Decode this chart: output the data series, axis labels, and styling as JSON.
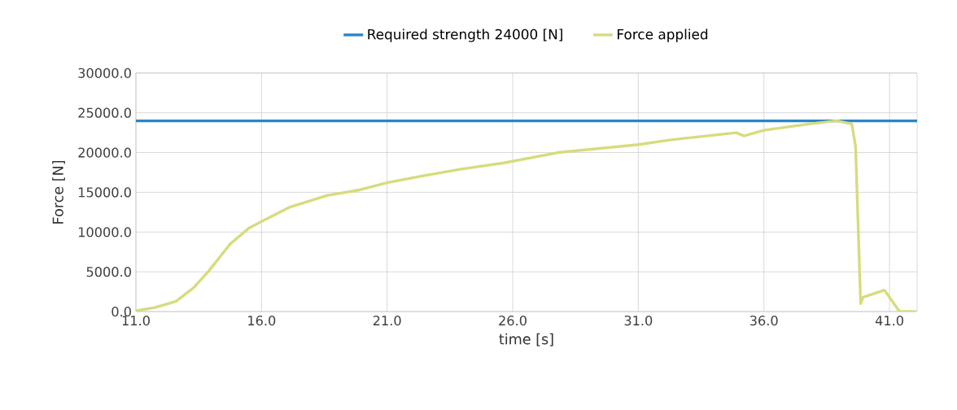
{
  "chart_data": {
    "type": "line",
    "xlabel": "time [s]",
    "ylabel": "Force [N]",
    "xlim": [
      11,
      42.1
    ],
    "ylim": [
      0,
      30000
    ],
    "xticks": [
      {
        "value": 11,
        "label": "11.0"
      },
      {
        "value": 16,
        "label": "16.0"
      },
      {
        "value": 21,
        "label": "21.0"
      },
      {
        "value": 26,
        "label": "26.0"
      },
      {
        "value": 31,
        "label": "31.0"
      },
      {
        "value": 36,
        "label": "36.0"
      },
      {
        "value": 41,
        "label": "41.0"
      }
    ],
    "yticks": [
      {
        "value": 0,
        "label": "0.0"
      },
      {
        "value": 5000,
        "label": "5000.0"
      },
      {
        "value": 10000,
        "label": "10000.0"
      },
      {
        "value": 15000,
        "label": "15000.0"
      },
      {
        "value": 20000,
        "label": "20000.0"
      },
      {
        "value": 25000,
        "label": "25000.0"
      },
      {
        "value": 30000,
        "label": "30000.0"
      }
    ],
    "grid": true,
    "legend": "top",
    "marker": "none",
    "line_style": "solid",
    "series": [
      {
        "name": "Required strength 24000 [N]",
        "color": "#2a86c9",
        "x": [
          11,
          42.1
        ],
        "values": [
          24000,
          24000
        ]
      },
      {
        "name": "Force applied",
        "color": "#d6dc7c",
        "x": [
          11,
          11.75,
          12.6,
          13.3,
          13.9,
          14.75,
          15.5,
          16.05,
          17.1,
          18.6,
          19.9,
          21.0,
          22.3,
          23.9,
          25.65,
          27.8,
          31.0,
          32.3,
          34.9,
          35.2,
          36.0,
          37.8,
          38.9,
          39.5,
          39.65,
          39.85,
          39.95,
          40.8,
          41.4,
          42.05
        ],
        "values": [
          100,
          500,
          1300,
          3000,
          5100,
          8500,
          10500,
          11400,
          13100,
          14600,
          15300,
          16200,
          17000,
          17900,
          18700,
          20000,
          21000,
          21600,
          22500,
          22100,
          22800,
          23600,
          24000,
          23600,
          20800,
          1000,
          1800,
          2700,
          0,
          0
        ]
      }
    ]
  }
}
